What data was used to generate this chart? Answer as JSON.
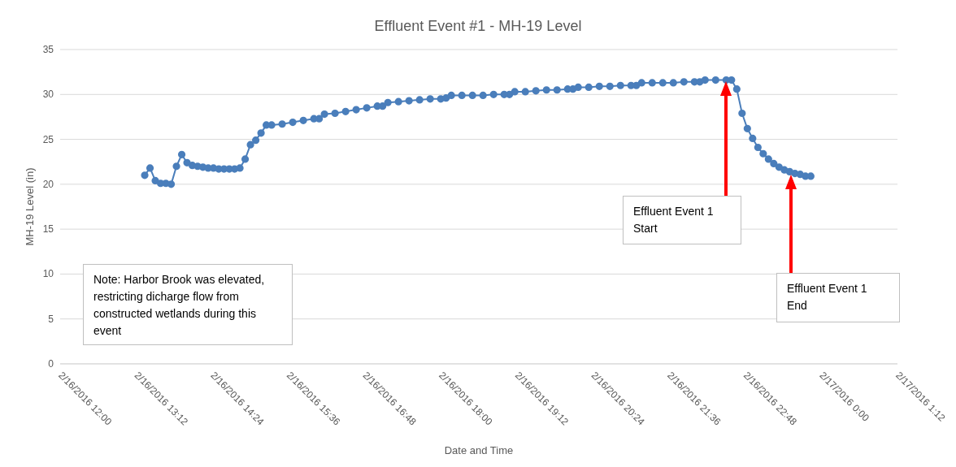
{
  "chart_data": {
    "type": "line",
    "title": "Effluent Event #1 - MH-19 Level",
    "xlabel": "Date and Time",
    "ylabel": "MH-19 Level (in)",
    "xlim": [
      "2016-02-16T12:00",
      "2016-02-17T01:12"
    ],
    "xticks": [
      {
        "value": "2016-02-16T12:00",
        "label": "2/16/2016 12:00"
      },
      {
        "value": "2016-02-16T13:12",
        "label": "2/16/2016 13:12"
      },
      {
        "value": "2016-02-16T14:24",
        "label": "2/16/2016 14:24"
      },
      {
        "value": "2016-02-16T15:36",
        "label": "2/16/2016 15:36"
      },
      {
        "value": "2016-02-16T16:48",
        "label": "2/16/2016 16:48"
      },
      {
        "value": "2016-02-16T18:00",
        "label": "2/16/2016 18:00"
      },
      {
        "value": "2016-02-16T19:12",
        "label": "2/16/2016 19:12"
      },
      {
        "value": "2016-02-16T20:24",
        "label": "2/16/2016 20:24"
      },
      {
        "value": "2016-02-16T21:36",
        "label": "2/16/2016 21:36"
      },
      {
        "value": "2016-02-16T22:48",
        "label": "2/16/2016 22:48"
      },
      {
        "value": "2016-02-17T00:00",
        "label": "2/17/2016 0:00"
      },
      {
        "value": "2016-02-17T01:12",
        "label": "2/17/2016 1:12"
      }
    ],
    "ylim": [
      0,
      35
    ],
    "yticks": [
      0,
      5,
      10,
      15,
      20,
      25,
      30,
      35
    ],
    "grid": "y",
    "marker": "circle",
    "line_style": "solid",
    "series": [
      {
        "color": "#4a7ebb",
        "x": [
          "2016-02-16T13:20",
          "2016-02-16T13:25",
          "2016-02-16T13:30",
          "2016-02-16T13:35",
          "2016-02-16T13:40",
          "2016-02-16T13:45",
          "2016-02-16T13:50",
          "2016-02-16T13:55",
          "2016-02-16T14:00",
          "2016-02-16T14:05",
          "2016-02-16T14:10",
          "2016-02-16T14:15",
          "2016-02-16T14:20",
          "2016-02-16T14:25",
          "2016-02-16T14:30",
          "2016-02-16T14:35",
          "2016-02-16T14:40",
          "2016-02-16T14:45",
          "2016-02-16T14:50",
          "2016-02-16T14:55",
          "2016-02-16T15:00",
          "2016-02-16T15:05",
          "2016-02-16T15:10",
          "2016-02-16T15:15",
          "2016-02-16T15:20",
          "2016-02-16T15:30",
          "2016-02-16T15:40",
          "2016-02-16T15:50",
          "2016-02-16T16:00",
          "2016-02-16T16:05",
          "2016-02-16T16:10",
          "2016-02-16T16:20",
          "2016-02-16T16:30",
          "2016-02-16T16:40",
          "2016-02-16T16:50",
          "2016-02-16T17:00",
          "2016-02-16T17:05",
          "2016-02-16T17:10",
          "2016-02-16T17:20",
          "2016-02-16T17:30",
          "2016-02-16T17:40",
          "2016-02-16T17:50",
          "2016-02-16T18:00",
          "2016-02-16T18:05",
          "2016-02-16T18:10",
          "2016-02-16T18:20",
          "2016-02-16T18:30",
          "2016-02-16T18:40",
          "2016-02-16T18:50",
          "2016-02-16T19:00",
          "2016-02-16T19:05",
          "2016-02-16T19:10",
          "2016-02-16T19:20",
          "2016-02-16T19:30",
          "2016-02-16T19:40",
          "2016-02-16T19:50",
          "2016-02-16T20:00",
          "2016-02-16T20:05",
          "2016-02-16T20:10",
          "2016-02-16T20:20",
          "2016-02-16T20:30",
          "2016-02-16T20:40",
          "2016-02-16T20:50",
          "2016-02-16T21:00",
          "2016-02-16T21:05",
          "2016-02-16T21:10",
          "2016-02-16T21:20",
          "2016-02-16T21:30",
          "2016-02-16T21:40",
          "2016-02-16T21:50",
          "2016-02-16T22:00",
          "2016-02-16T22:05",
          "2016-02-16T22:10",
          "2016-02-16T22:20",
          "2016-02-16T22:30",
          "2016-02-16T22:35",
          "2016-02-16T22:40",
          "2016-02-16T22:45",
          "2016-02-16T22:50",
          "2016-02-16T22:55",
          "2016-02-16T23:00",
          "2016-02-16T23:05",
          "2016-02-16T23:10",
          "2016-02-16T23:15",
          "2016-02-16T23:20",
          "2016-02-16T23:25",
          "2016-02-16T23:30",
          "2016-02-16T23:35",
          "2016-02-16T23:40",
          "2016-02-16T23:45",
          "2016-02-16T23:50"
        ],
        "values": [
          21.0,
          21.8,
          20.4,
          20.1,
          20.1,
          20.0,
          22.0,
          23.3,
          22.4,
          22.1,
          22.0,
          21.9,
          21.8,
          21.8,
          21.7,
          21.7,
          21.7,
          21.7,
          21.8,
          22.8,
          24.4,
          24.9,
          25.7,
          26.6,
          26.6,
          26.7,
          26.9,
          27.1,
          27.3,
          27.3,
          27.8,
          27.9,
          28.1,
          28.3,
          28.5,
          28.7,
          28.7,
          29.1,
          29.2,
          29.3,
          29.4,
          29.5,
          29.5,
          29.6,
          29.9,
          29.9,
          29.9,
          29.9,
          30.0,
          30.0,
          30.0,
          30.3,
          30.3,
          30.4,
          30.5,
          30.5,
          30.6,
          30.6,
          30.8,
          30.8,
          30.9,
          30.9,
          31.0,
          31.0,
          31.0,
          31.3,
          31.3,
          31.3,
          31.3,
          31.4,
          31.4,
          31.4,
          31.6,
          31.6,
          31.6,
          31.6,
          30.6,
          27.9,
          26.2,
          25.1,
          24.1,
          23.4,
          22.8,
          22.3,
          21.9,
          21.6,
          21.4,
          21.2,
          21.1,
          20.9,
          20.9
        ]
      }
    ],
    "annotations": [
      "Effluent Event 1\nStart",
      "Effluent Event 1\nEnd",
      "Note: Harbor Brook was elevated, restricting dicharge flow from constructed wetlands during this event"
    ]
  }
}
